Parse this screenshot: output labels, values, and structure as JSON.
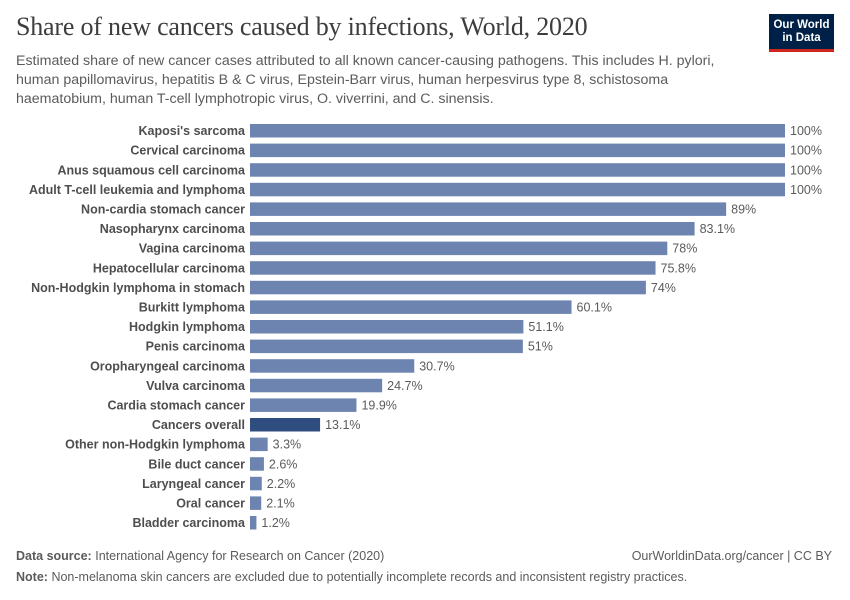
{
  "header": {
    "title": "Share of new cancers caused by infections, World, 2020",
    "subtitle": "Estimated share of new cancer cases attributed to all known cancer-causing pathogens. This includes H. pylori, human papillomavirus, hepatitis B & C virus, Epstein-Barr virus, human herpesvirus type 8, schistosoma haematobium, human T-cell lymphotropic virus, O. viverrini, and C. sinensis."
  },
  "logo": {
    "line1": "Our World",
    "line2": "in Data"
  },
  "footer": {
    "source_label": "Data source:",
    "source_text": "International Agency for Research on Cancer (2020)",
    "site": "OurWorldinData.org/cancer | CC BY",
    "note_label": "Note:",
    "note_text": "Non-melanoma skin cancers are excluded due to potentially incomplete records and inconsistent registry practices."
  },
  "colors": {
    "bar": "#6d84b0",
    "highlight": "#2f4d7e"
  },
  "chart_data": {
    "type": "bar",
    "orientation": "horizontal",
    "categories": [
      "Kaposi's sarcoma",
      "Cervical carcinoma",
      "Anus squamous cell carcinoma",
      "Adult T-cell leukemia and lymphoma",
      "Non-cardia stomach cancer",
      "Nasopharynx carcinoma",
      "Vagina carcinoma",
      "Hepatocellular carcinoma",
      "Non-Hodgkin lymphoma in stomach",
      "Burkitt lymphoma",
      "Hodgkin lymphoma",
      "Penis carcinoma",
      "Oropharyngeal carcinoma",
      "Vulva carcinoma",
      "Cardia stomach cancer",
      "Cancers overall",
      "Other non-Hodgkin lymphoma",
      "Bile duct cancer",
      "Laryngeal cancer",
      "Oral cancer",
      "Bladder carcinoma"
    ],
    "values": [
      100,
      100,
      100,
      100,
      89,
      83.1,
      78,
      75.8,
      74,
      60.1,
      51.1,
      51,
      30.7,
      24.7,
      19.9,
      13.1,
      3.3,
      2.6,
      2.2,
      2.1,
      1.2
    ],
    "value_labels": [
      "100%",
      "100%",
      "100%",
      "100%",
      "89%",
      "83.1%",
      "78%",
      "75.8%",
      "74%",
      "60.1%",
      "51.1%",
      "51%",
      "30.7%",
      "24.7%",
      "19.9%",
      "13.1%",
      "3.3%",
      "2.6%",
      "2.2%",
      "2.1%",
      "1.2%"
    ],
    "highlight": "Cancers overall",
    "unit": "%",
    "xlim": [
      0,
      100
    ]
  }
}
